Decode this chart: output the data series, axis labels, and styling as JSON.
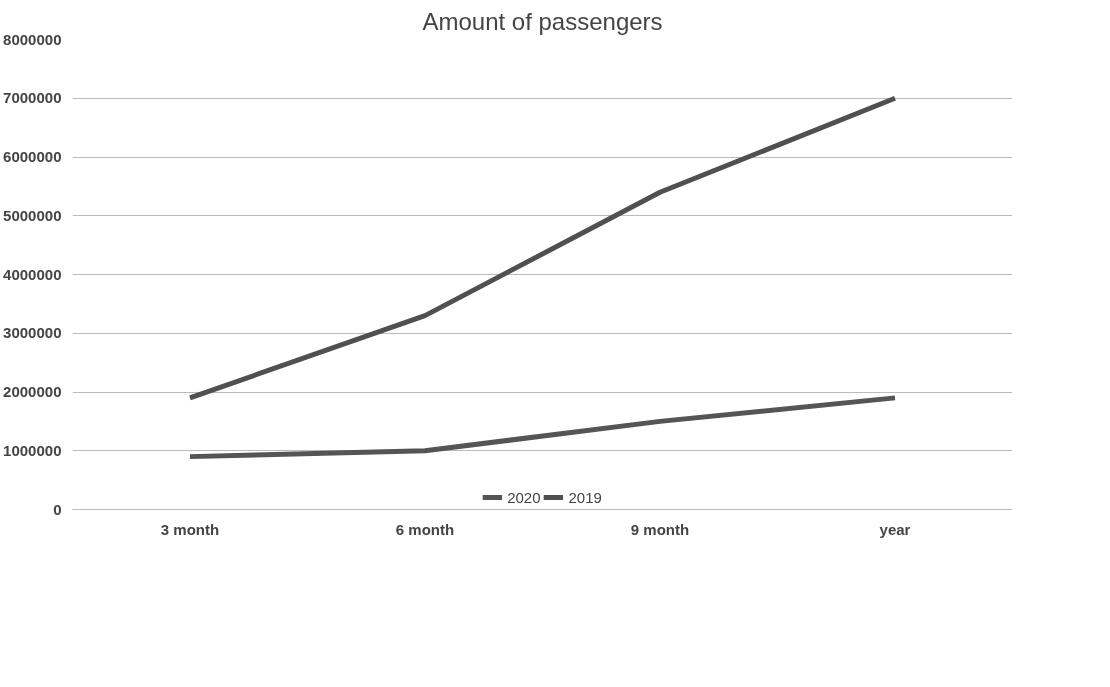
{
  "chart_data": {
    "type": "line",
    "title": "Amount of passengers",
    "categories": [
      "3 month",
      "6 month",
      "9 month",
      "year"
    ],
    "series": [
      {
        "name": "2020",
        "color": "#555555",
        "values": [
          900000,
          1000000,
          1500000,
          1900000
        ]
      },
      {
        "name": "2019",
        "color": "#505050",
        "values": [
          1900000,
          3300000,
          5400000,
          7000000
        ]
      }
    ],
    "ylim": [
      0,
      8000000
    ],
    "yticks": [
      0,
      1000000,
      2000000,
      3000000,
      4000000,
      5000000,
      6000000,
      7000000,
      8000000
    ],
    "grid": "y",
    "legend": "bottom",
    "line_style": "solid"
  }
}
